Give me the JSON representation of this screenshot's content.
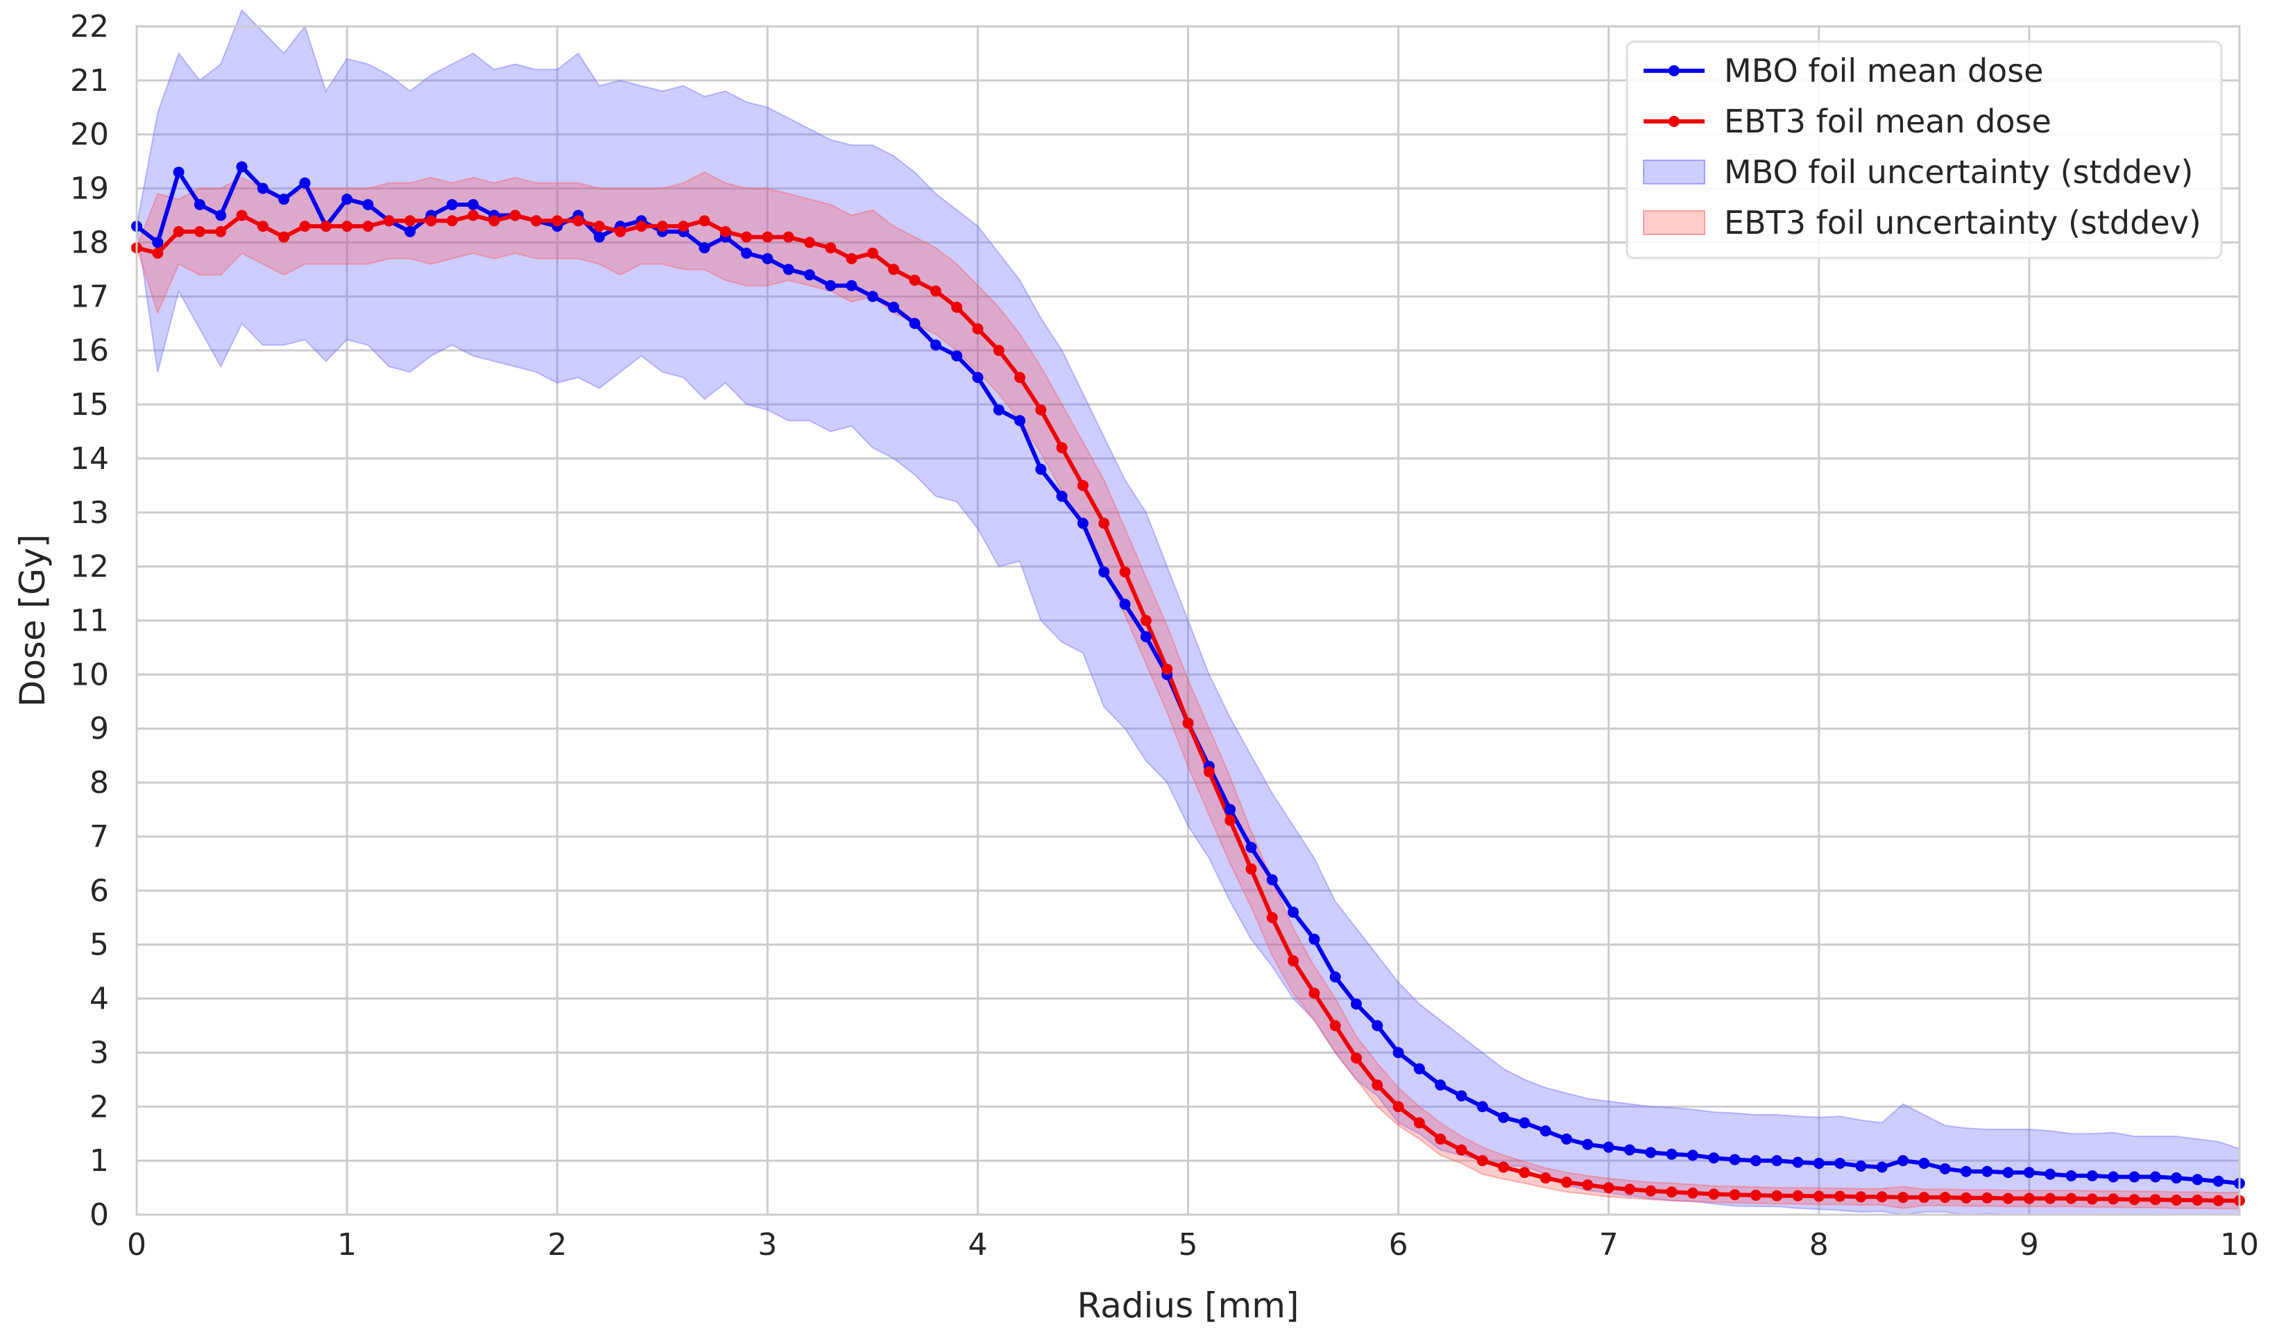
{
  "chart_data": {
    "type": "line",
    "title": "",
    "xlabel": "Radius [mm]",
    "ylabel": "Dose [Gy]",
    "xlim": [
      0,
      10
    ],
    "ylim": [
      0,
      22
    ],
    "xticks": [
      0,
      1,
      2,
      3,
      4,
      5,
      6,
      7,
      8,
      9,
      10
    ],
    "yticks": [
      0,
      1,
      2,
      3,
      4,
      5,
      6,
      7,
      8,
      9,
      10,
      11,
      12,
      13,
      14,
      15,
      16,
      17,
      18,
      19,
      20,
      21,
      22
    ],
    "grid": true,
    "legend_position": "top-right",
    "x": [
      0.0,
      0.1,
      0.2,
      0.3,
      0.4,
      0.5,
      0.6,
      0.7,
      0.8,
      0.9,
      1.0,
      1.1,
      1.2,
      1.3,
      1.4,
      1.5,
      1.6,
      1.7,
      1.8,
      1.9,
      2.0,
      2.1,
      2.2,
      2.3,
      2.4,
      2.5,
      2.6,
      2.7,
      2.8,
      2.9,
      3.0,
      3.1,
      3.2,
      3.3,
      3.4,
      3.5,
      3.6,
      3.7,
      3.8,
      3.9,
      4.0,
      4.1,
      4.2,
      4.3,
      4.4,
      4.5,
      4.6,
      4.7,
      4.8,
      4.9,
      5.0,
      5.1,
      5.2,
      5.3,
      5.4,
      5.5,
      5.6,
      5.7,
      5.8,
      5.9,
      6.0,
      6.1,
      6.2,
      6.3,
      6.4,
      6.5,
      6.6,
      6.7,
      6.8,
      6.9,
      7.0,
      7.1,
      7.2,
      7.3,
      7.4,
      7.5,
      7.6,
      7.7,
      7.8,
      7.9,
      8.0,
      8.1,
      8.2,
      8.3,
      8.4,
      8.5,
      8.6,
      8.7,
      8.8,
      8.9,
      9.0,
      9.1,
      9.2,
      9.3,
      9.4,
      9.5,
      9.6,
      9.7,
      9.8,
      9.9,
      10.0
    ],
    "series": [
      {
        "name": "MBO foil mean dose",
        "color": "#0000ee",
        "values": [
          18.3,
          18.0,
          19.3,
          18.7,
          18.5,
          19.4,
          19.0,
          18.8,
          19.1,
          18.3,
          18.8,
          18.7,
          18.4,
          18.2,
          18.5,
          18.7,
          18.7,
          18.5,
          18.5,
          18.4,
          18.3,
          18.5,
          18.1,
          18.3,
          18.4,
          18.2,
          18.2,
          17.9,
          18.1,
          17.8,
          17.7,
          17.5,
          17.4,
          17.2,
          17.2,
          17.0,
          16.8,
          16.5,
          16.1,
          15.9,
          15.5,
          14.9,
          14.7,
          13.8,
          13.3,
          12.8,
          11.9,
          11.3,
          10.7,
          10.0,
          9.1,
          8.3,
          7.5,
          6.8,
          6.2,
          5.6,
          5.1,
          4.4,
          3.9,
          3.5,
          3.0,
          2.7,
          2.4,
          2.2,
          2.0,
          1.8,
          1.7,
          1.55,
          1.4,
          1.3,
          1.25,
          1.2,
          1.15,
          1.12,
          1.1,
          1.05,
          1.02,
          1.0,
          1.0,
          0.97,
          0.95,
          0.95,
          0.9,
          0.88,
          1.0,
          0.95,
          0.85,
          0.8,
          0.8,
          0.78,
          0.78,
          0.75,
          0.72,
          0.72,
          0.7,
          0.7,
          0.7,
          0.68,
          0.65,
          0.62,
          0.58
        ]
      },
      {
        "name": "EBT3 foil mean dose",
        "color": "#ee0000",
        "values": [
          17.9,
          17.8,
          18.2,
          18.2,
          18.2,
          18.5,
          18.3,
          18.1,
          18.3,
          18.3,
          18.3,
          18.3,
          18.4,
          18.4,
          18.4,
          18.4,
          18.5,
          18.4,
          18.5,
          18.4,
          18.4,
          18.4,
          18.3,
          18.2,
          18.3,
          18.3,
          18.3,
          18.4,
          18.2,
          18.1,
          18.1,
          18.1,
          18.0,
          17.9,
          17.7,
          17.8,
          17.5,
          17.3,
          17.1,
          16.8,
          16.4,
          16.0,
          15.5,
          14.9,
          14.2,
          13.5,
          12.8,
          11.9,
          11.0,
          10.1,
          9.1,
          8.2,
          7.3,
          6.4,
          5.5,
          4.7,
          4.1,
          3.5,
          2.9,
          2.4,
          2.0,
          1.7,
          1.4,
          1.2,
          1.0,
          0.88,
          0.78,
          0.68,
          0.6,
          0.55,
          0.5,
          0.47,
          0.44,
          0.42,
          0.4,
          0.38,
          0.37,
          0.36,
          0.35,
          0.35,
          0.34,
          0.34,
          0.33,
          0.33,
          0.32,
          0.32,
          0.32,
          0.31,
          0.31,
          0.3,
          0.3,
          0.3,
          0.3,
          0.29,
          0.29,
          0.28,
          0.28,
          0.27,
          0.27,
          0.26,
          0.26
        ]
      }
    ],
    "bands": [
      {
        "name": "MBO foil uncertainty (stddev)",
        "color": "#6666ff",
        "opacity": 0.33,
        "upper": [
          18.3,
          20.4,
          21.5,
          21.0,
          21.3,
          22.3,
          21.9,
          21.5,
          22.0,
          20.8,
          21.4,
          21.3,
          21.1,
          20.8,
          21.1,
          21.3,
          21.5,
          21.2,
          21.3,
          21.2,
          21.2,
          21.5,
          20.9,
          21.0,
          20.9,
          20.8,
          20.9,
          20.7,
          20.8,
          20.6,
          20.5,
          20.3,
          20.1,
          19.9,
          19.8,
          19.8,
          19.6,
          19.3,
          18.9,
          18.6,
          18.3,
          17.8,
          17.3,
          16.6,
          16.0,
          15.2,
          14.4,
          13.6,
          13.0,
          12.0,
          11.0,
          10.0,
          9.2,
          8.5,
          7.8,
          7.2,
          6.6,
          5.8,
          5.3,
          4.8,
          4.3,
          3.9,
          3.6,
          3.3,
          3.0,
          2.7,
          2.5,
          2.35,
          2.25,
          2.15,
          2.1,
          2.05,
          2.0,
          1.98,
          1.95,
          1.9,
          1.88,
          1.85,
          1.85,
          1.82,
          1.8,
          1.82,
          1.75,
          1.7,
          2.05,
          1.85,
          1.65,
          1.6,
          1.58,
          1.58,
          1.58,
          1.55,
          1.5,
          1.5,
          1.52,
          1.45,
          1.45,
          1.45,
          1.4,
          1.35,
          1.22
        ]
      },
      {
        "name": "EBT3 foil uncertainty (stddev)",
        "color": "#ff5555",
        "opacity": 0.3,
        "upper": [
          17.9,
          18.9,
          18.8,
          19.0,
          19.0,
          19.2,
          19.0,
          18.8,
          19.0,
          19.0,
          19.0,
          19.0,
          19.1,
          19.1,
          19.2,
          19.1,
          19.2,
          19.1,
          19.2,
          19.1,
          19.1,
          19.1,
          19.0,
          19.0,
          19.0,
          19.0,
          19.1,
          19.3,
          19.1,
          19.0,
          19.0,
          18.9,
          18.8,
          18.7,
          18.5,
          18.6,
          18.3,
          18.1,
          17.9,
          17.6,
          17.2,
          16.8,
          16.3,
          15.7,
          15.0,
          14.3,
          13.6,
          12.7,
          11.8,
          10.9,
          9.9,
          9.0,
          8.1,
          7.1,
          6.2,
          5.3,
          4.6,
          4.0,
          3.3,
          2.8,
          2.35,
          2.0,
          1.7,
          1.45,
          1.25,
          1.1,
          0.98,
          0.86,
          0.78,
          0.72,
          0.67,
          0.63,
          0.6,
          0.58,
          0.56,
          0.53,
          0.52,
          0.51,
          0.5,
          0.5,
          0.49,
          0.49,
          0.48,
          0.48,
          0.52,
          0.47,
          0.47,
          0.46,
          0.46,
          0.45,
          0.45,
          0.45,
          0.45,
          0.44,
          0.44,
          0.43,
          0.43,
          0.42,
          0.42,
          0.41,
          0.41
        ]
      }
    ]
  }
}
